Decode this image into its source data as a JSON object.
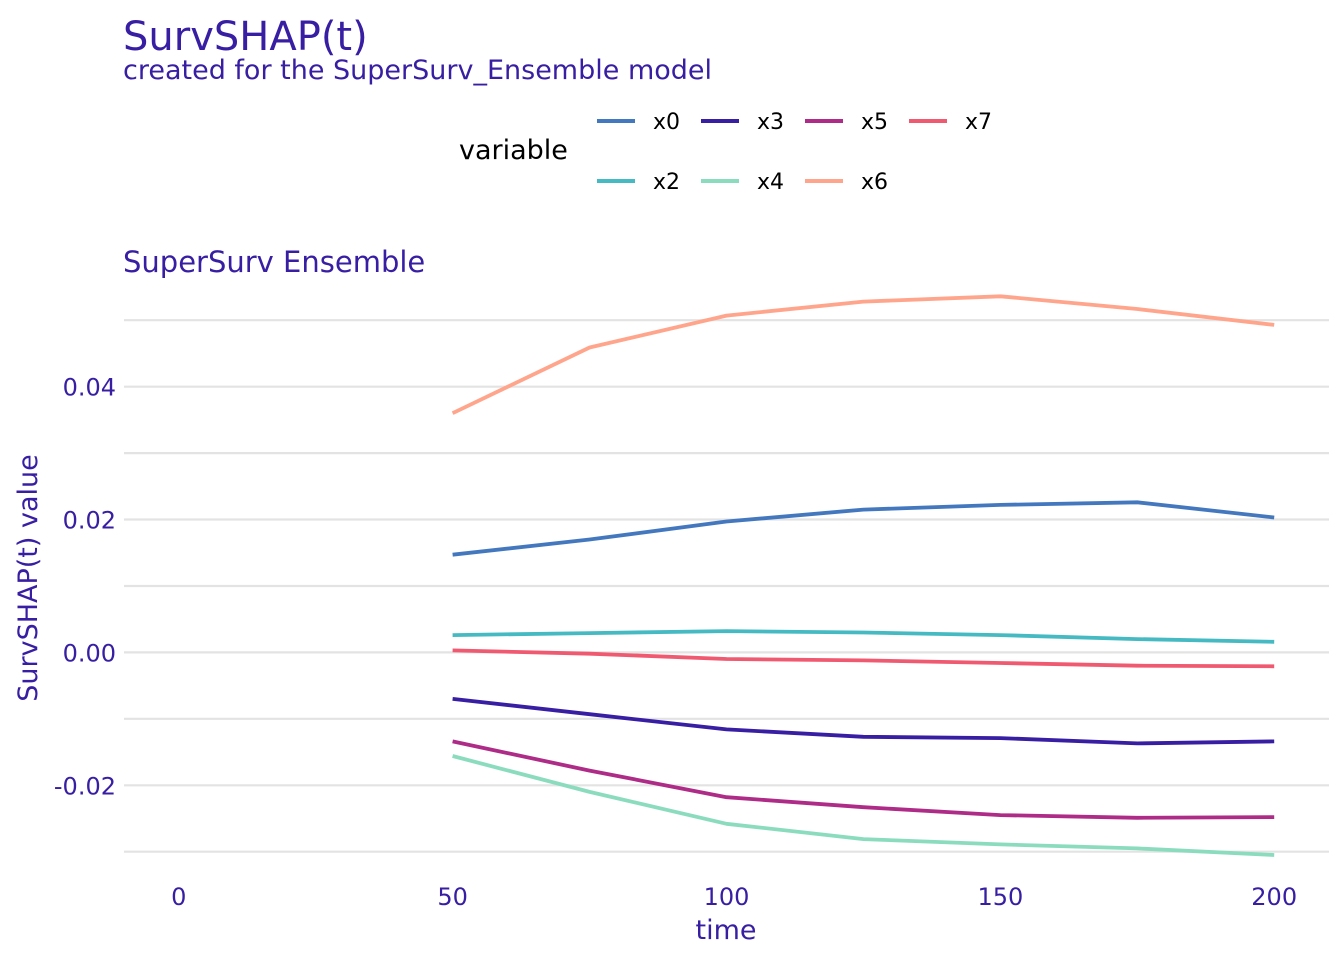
{
  "chart_data": {
    "type": "line",
    "title": "SurvSHAP(t)",
    "subtitle": "created for the SuperSurv_Ensemble model",
    "facet_title": "SuperSurv  Ensemble",
    "xlabel": "time",
    "ylabel": "SurvSHAP(t) value",
    "xlim": [
      -10,
      210
    ],
    "ylim": [
      -0.0305,
      0.0535
    ],
    "x_ticks": [
      0,
      50,
      100,
      150,
      200
    ],
    "x_tick_labels": [
      "0",
      "50",
      "100",
      "150",
      "200"
    ],
    "y_ticks": [
      -0.02,
      0.0,
      0.02,
      0.04
    ],
    "y_tick_labels": [
      "-0.02",
      "0.00",
      "0.02",
      "0.04"
    ],
    "y_minor_ticks": [
      -0.03,
      -0.01,
      0.01,
      0.03,
      0.05
    ],
    "grid": true,
    "legend": {
      "title": "variable",
      "position": "top",
      "rows": [
        [
          "x0",
          "x3",
          "x5",
          "x7"
        ],
        [
          "x2",
          "x4",
          "x6"
        ]
      ]
    },
    "x": [
      50,
      75,
      100,
      125,
      150,
      175,
      200
    ],
    "series": [
      {
        "name": "x0",
        "color": "#4378bf",
        "values": [
          0.0147,
          0.017,
          0.0197,
          0.0215,
          0.0222,
          0.0226,
          0.0203
        ]
      },
      {
        "name": "x2",
        "color": "#46bac2",
        "values": [
          0.0026,
          0.0029,
          0.0032,
          0.003,
          0.0026,
          0.002,
          0.0016
        ]
      },
      {
        "name": "x3",
        "color": "#371ea3",
        "values": [
          -0.007,
          -0.0093,
          -0.0116,
          -0.0127,
          -0.0129,
          -0.0137,
          -0.0134
        ]
      },
      {
        "name": "x4",
        "color": "#8bdcbe",
        "values": [
          -0.0156,
          -0.021,
          -0.0258,
          -0.0281,
          -0.0289,
          -0.0295,
          -0.0305
        ]
      },
      {
        "name": "x5",
        "color": "#ae2c87",
        "values": [
          -0.0134,
          -0.0178,
          -0.0218,
          -0.0233,
          -0.0245,
          -0.0249,
          -0.0248
        ]
      },
      {
        "name": "x6",
        "color": "#ffa58c",
        "values": [
          0.036,
          0.0459,
          0.0507,
          0.0528,
          0.0536,
          0.0517,
          0.0493
        ]
      },
      {
        "name": "x7",
        "color": "#f05a71",
        "values": [
          0.0003,
          -0.0002,
          -0.001,
          -0.0012,
          -0.0016,
          -0.002,
          -0.0021
        ]
      }
    ]
  }
}
